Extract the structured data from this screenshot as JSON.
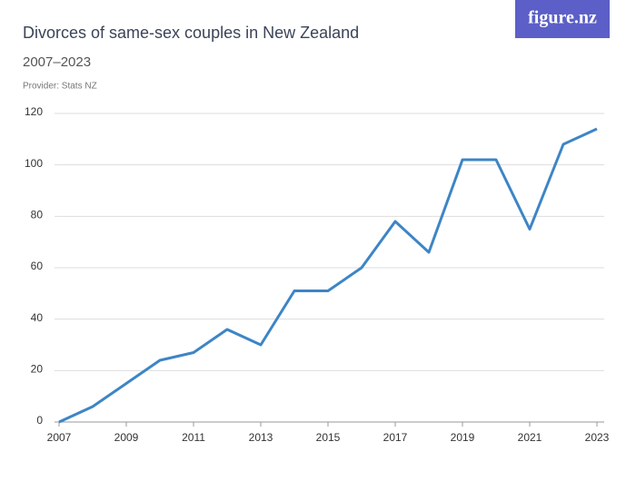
{
  "logo": "figure.nz",
  "chart_data": {
    "type": "line",
    "title": "Divorces of same-sex couples in New Zealand",
    "subtitle": "2007–2023",
    "provider": "Provider: Stats NZ",
    "x": [
      2007,
      2008,
      2009,
      2010,
      2011,
      2012,
      2013,
      2014,
      2015,
      2016,
      2017,
      2018,
      2019,
      2020,
      2021,
      2022,
      2023
    ],
    "series": [
      {
        "name": "Divorces",
        "color": "#3d85c6",
        "values": [
          0,
          6,
          15,
          24,
          27,
          36,
          30,
          51,
          51,
          60,
          78,
          66,
          102,
          102,
          75,
          108,
          114
        ]
      }
    ],
    "xlim": [
      2007,
      2023
    ],
    "xticks": [
      2007,
      2009,
      2011,
      2013,
      2015,
      2017,
      2019,
      2021,
      2023
    ],
    "ylim": [
      0,
      120
    ],
    "yticks": [
      0,
      20,
      40,
      60,
      80,
      100,
      120
    ],
    "grid": true
  }
}
